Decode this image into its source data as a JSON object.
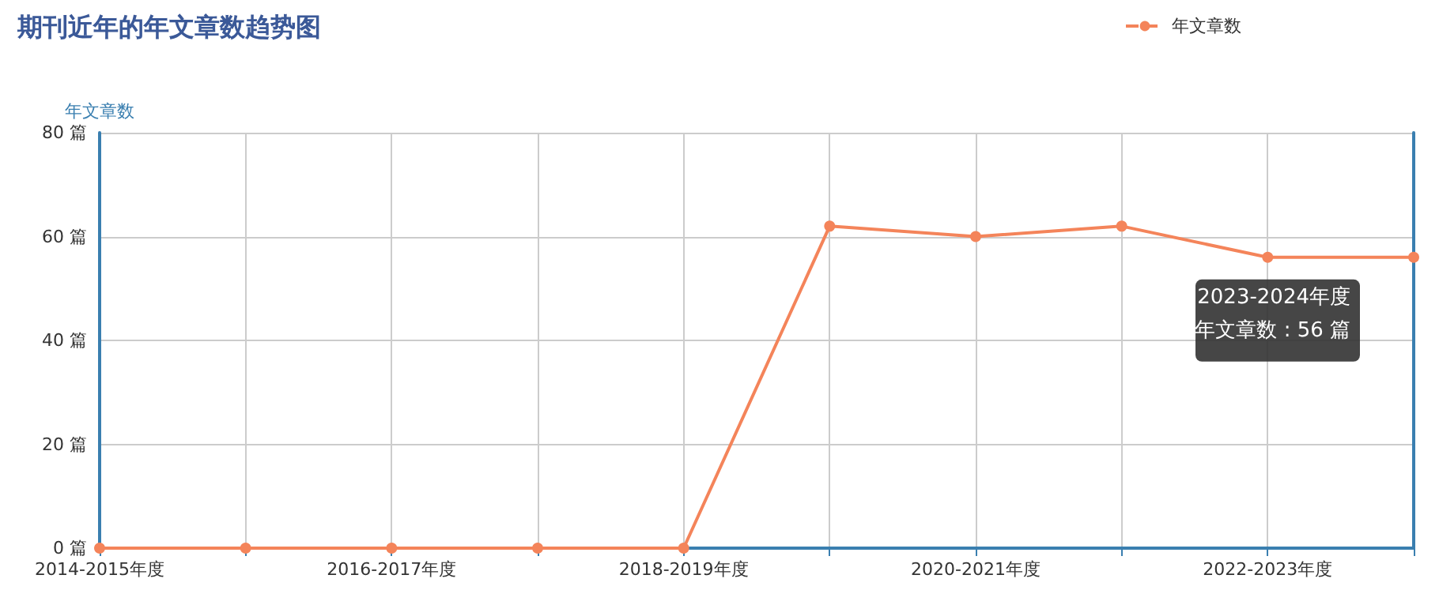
{
  "chart_data": {
    "type": "line",
    "title": "期刊近年的年文章数趋势图",
    "ylabel": "年文章数",
    "categories": [
      "2014-2015年度",
      null,
      "2016-2017年度",
      null,
      "2018-2019年度",
      null,
      "2020-2021年度",
      null,
      "2022-2023年度",
      null
    ],
    "series": [
      {
        "name": "年文章数",
        "color": "#f4845a",
        "values": [
          0,
          0,
          0,
          0,
          0,
          62,
          60,
          62,
          56,
          56
        ]
      }
    ],
    "ylim": [
      0,
      80
    ],
    "yticks": [
      {
        "value": 0,
        "label": "0 篇"
      },
      {
        "value": 20,
        "label": "20 篇"
      },
      {
        "value": 40,
        "label": "40 篇"
      },
      {
        "value": 60,
        "label": "60 篇"
      },
      {
        "value": 80,
        "label": "80 篇"
      }
    ],
    "annotations": [
      "2023-2024年度",
      "年文章数 : 56 篇"
    ],
    "grid": true,
    "legend": "top right",
    "marker": "circle"
  }
}
